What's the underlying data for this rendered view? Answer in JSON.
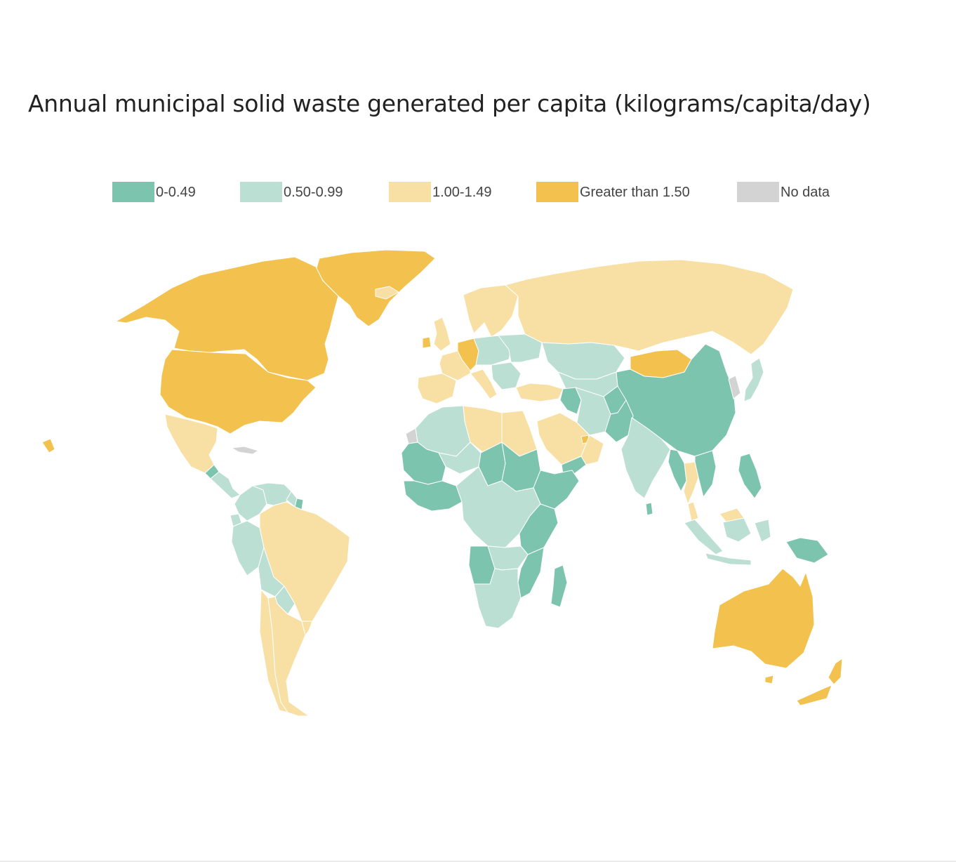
{
  "title": "Annual municipal solid waste generated per capita (kilograms/capita/day)",
  "legend": [
    {
      "label": "0-0.49",
      "color": "#7dc4ae",
      "category": "low"
    },
    {
      "label": "0.50-0.99",
      "color": "#bcdfd3",
      "category": "lower-middle"
    },
    {
      "label": "1.00-1.49",
      "color": "#f8e0a5",
      "category": "upper-middle"
    },
    {
      "label": "Greater than 1.50",
      "color": "#f2c14e",
      "category": "high"
    },
    {
      "label": "No data",
      "color": "#d3d3d3",
      "category": "nodata"
    }
  ],
  "map": {
    "projection": "Robinson-like world map",
    "ocean_color": "#ffffff",
    "border_color": "#ffffff",
    "regions": [
      {
        "name": "Greenland",
        "category": "high"
      },
      {
        "name": "Canada",
        "category": "high"
      },
      {
        "name": "United States",
        "category": "high"
      },
      {
        "name": "Mexico",
        "category": "upper-middle"
      },
      {
        "name": "Central America",
        "category": "lower-middle"
      },
      {
        "name": "Guatemala",
        "category": "low"
      },
      {
        "name": "Cuba",
        "category": "nodata"
      },
      {
        "name": "Colombia",
        "category": "lower-middle"
      },
      {
        "name": "Venezuela",
        "category": "lower-middle"
      },
      {
        "name": "Guyana",
        "category": "lower-middle"
      },
      {
        "name": "Suriname",
        "category": "low"
      },
      {
        "name": "Ecuador",
        "category": "lower-middle"
      },
      {
        "name": "Peru",
        "category": "lower-middle"
      },
      {
        "name": "Brazil",
        "category": "upper-middle"
      },
      {
        "name": "Bolivia",
        "category": "lower-middle"
      },
      {
        "name": "Paraguay",
        "category": "lower-middle"
      },
      {
        "name": "Chile",
        "category": "upper-middle"
      },
      {
        "name": "Argentina",
        "category": "upper-middle"
      },
      {
        "name": "Uruguay",
        "category": "upper-middle"
      },
      {
        "name": "Iceland",
        "category": "upper-middle"
      },
      {
        "name": "Ireland",
        "category": "high"
      },
      {
        "name": "United Kingdom",
        "category": "upper-middle"
      },
      {
        "name": "Iberia",
        "category": "upper-middle"
      },
      {
        "name": "France",
        "category": "upper-middle"
      },
      {
        "name": "Germany",
        "category": "high"
      },
      {
        "name": "Scandinavia",
        "category": "upper-middle"
      },
      {
        "name": "Central Europe",
        "category": "lower-middle"
      },
      {
        "name": "Italy",
        "category": "upper-middle"
      },
      {
        "name": "Balkans",
        "category": "lower-middle"
      },
      {
        "name": "Ukraine",
        "category": "lower-middle"
      },
      {
        "name": "Russia",
        "category": "upper-middle"
      },
      {
        "name": "Turkey",
        "category": "upper-middle"
      },
      {
        "name": "Kazakhstan",
        "category": "lower-middle"
      },
      {
        "name": "Central Asia",
        "category": "lower-middle"
      },
      {
        "name": "Mongolia",
        "category": "high"
      },
      {
        "name": "China",
        "category": "low"
      },
      {
        "name": "Korea",
        "category": "nodata"
      },
      {
        "name": "Japan",
        "category": "lower-middle"
      },
      {
        "name": "Iran",
        "category": "lower-middle"
      },
      {
        "name": "Iraq and Syria",
        "category": "low"
      },
      {
        "name": "Afghanistan",
        "category": "low"
      },
      {
        "name": "Pakistan",
        "category": "low"
      },
      {
        "name": "Saudi Arabia",
        "category": "upper-middle"
      },
      {
        "name": "Oman",
        "category": "upper-middle"
      },
      {
        "name": "UAE",
        "category": "high"
      },
      {
        "name": "Yemen",
        "category": "low"
      },
      {
        "name": "India",
        "category": "lower-middle"
      },
      {
        "name": "Sri Lanka",
        "category": "low"
      },
      {
        "name": "Myanmar",
        "category": "low"
      },
      {
        "name": "Thailand",
        "category": "upper-middle"
      },
      {
        "name": "Vietnam and Laos",
        "category": "low"
      },
      {
        "name": "Philippines",
        "category": "low"
      },
      {
        "name": "Malaysia",
        "category": "upper-middle"
      },
      {
        "name": "Indonesia",
        "category": "lower-middle"
      },
      {
        "name": "Papua New Guinea",
        "category": "low"
      },
      {
        "name": "Australia",
        "category": "high"
      },
      {
        "name": "New Zealand",
        "category": "high"
      },
      {
        "name": "Morocco and Algeria",
        "category": "lower-middle"
      },
      {
        "name": "Western Sahara",
        "category": "nodata"
      },
      {
        "name": "Libya",
        "category": "upper-middle"
      },
      {
        "name": "Egypt",
        "category": "upper-middle"
      },
      {
        "name": "Mauritania and Mali",
        "category": "low"
      },
      {
        "name": "West Africa",
        "category": "low"
      },
      {
        "name": "Niger",
        "category": "lower-middle"
      },
      {
        "name": "Chad",
        "category": "low"
      },
      {
        "name": "Sudan",
        "category": "low"
      },
      {
        "name": "Ethiopia and Somalia",
        "category": "low"
      },
      {
        "name": "Kenya and Tanzania",
        "category": "low"
      },
      {
        "name": "Central Africa",
        "category": "lower-middle"
      },
      {
        "name": "Angola",
        "category": "low"
      },
      {
        "name": "Zambia",
        "category": "lower-middle"
      },
      {
        "name": "Mozambique",
        "category": "low"
      },
      {
        "name": "Southern Africa",
        "category": "lower-middle"
      },
      {
        "name": "Madagascar",
        "category": "low"
      }
    ]
  }
}
